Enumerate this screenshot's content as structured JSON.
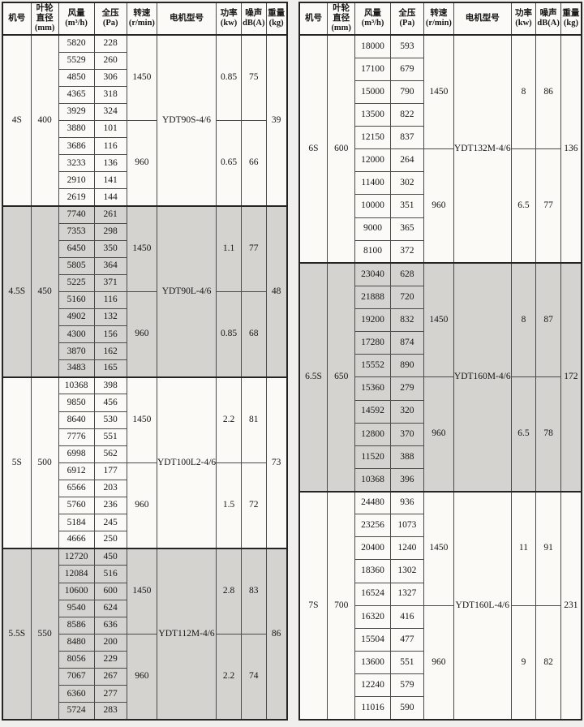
{
  "header": {
    "model": "机号",
    "diameter": [
      "叶轮",
      "直径",
      "(mm)"
    ],
    "flow": [
      "风量",
      "(m³/h)"
    ],
    "pressure": [
      "全压",
      "(Pa)"
    ],
    "speed": [
      "转速",
      "(r/min)"
    ],
    "motor": "电机型号",
    "power": [
      "功率",
      "(kw)"
    ],
    "noise": [
      "噪声",
      "dB(A)"
    ],
    "weight": [
      "重量",
      "(kg)"
    ]
  },
  "tables": [
    {
      "side": "left",
      "sections": [
        {
          "model": "4S",
          "diameter": "400",
          "shaded": false,
          "motor": [
            "YDT90S",
            "-4/6"
          ],
          "weight": "39",
          "speeds": [
            {
              "rpm": "1450",
              "power": "0.85",
              "noise": "75",
              "rows": [
                [
                  "5820",
                  "228"
                ],
                [
                  "5529",
                  "260"
                ],
                [
                  "4850",
                  "306"
                ],
                [
                  "4365",
                  "318"
                ],
                [
                  "3929",
                  "324"
                ]
              ]
            },
            {
              "rpm": "960",
              "power": "0.65",
              "noise": "66",
              "rows": [
                [
                  "3880",
                  "101"
                ],
                [
                  "3686",
                  "116"
                ],
                [
                  "3233",
                  "136"
                ],
                [
                  "2910",
                  "141"
                ],
                [
                  "2619",
                  "144"
                ]
              ]
            }
          ]
        },
        {
          "model": "4.5S",
          "diameter": "450",
          "shaded": true,
          "motor": [
            "YDT90L",
            "-4/6"
          ],
          "weight": "48",
          "speeds": [
            {
              "rpm": "1450",
              "power": "1.1",
              "noise": "77",
              "rows": [
                [
                  "7740",
                  "261"
                ],
                [
                  "7353",
                  "298"
                ],
                [
                  "6450",
                  "350"
                ],
                [
                  "5805",
                  "364"
                ],
                [
                  "5225",
                  "371"
                ]
              ]
            },
            {
              "rpm": "960",
              "power": "0.85",
              "noise": "68",
              "rows": [
                [
                  "5160",
                  "116"
                ],
                [
                  "4902",
                  "132"
                ],
                [
                  "4300",
                  "156"
                ],
                [
                  "3870",
                  "162"
                ],
                [
                  "3483",
                  "165"
                ]
              ]
            }
          ]
        },
        {
          "model": "5S",
          "diameter": "500",
          "shaded": false,
          "motor": [
            "YDT100L2",
            "-4/6"
          ],
          "weight": "73",
          "speeds": [
            {
              "rpm": "1450",
              "power": "2.2",
              "noise": "81",
              "rows": [
                [
                  "10368",
                  "398"
                ],
                [
                  "9850",
                  "456"
                ],
                [
                  "8640",
                  "530"
                ],
                [
                  "7776",
                  "551"
                ],
                [
                  "6998",
                  "562"
                ]
              ]
            },
            {
              "rpm": "960",
              "power": "1.5",
              "noise": "72",
              "rows": [
                [
                  "6912",
                  "177"
                ],
                [
                  "6566",
                  "203"
                ],
                [
                  "5760",
                  "236"
                ],
                [
                  "5184",
                  "245"
                ],
                [
                  "4666",
                  "250"
                ]
              ]
            }
          ]
        },
        {
          "model": "5.5S",
          "diameter": "550",
          "shaded": true,
          "motor": [
            "YDT112M",
            "-4/6"
          ],
          "weight": "86",
          "speeds": [
            {
              "rpm": "1450",
              "power": "2.8",
              "noise": "83",
              "rows": [
                [
                  "12720",
                  "450"
                ],
                [
                  "12084",
                  "516"
                ],
                [
                  "10600",
                  "600"
                ],
                [
                  "9540",
                  "624"
                ],
                [
                  "8586",
                  "636"
                ]
              ]
            },
            {
              "rpm": "960",
              "power": "2.2",
              "noise": "74",
              "rows": [
                [
                  "8480",
                  "200"
                ],
                [
                  "8056",
                  "229"
                ],
                [
                  "7067",
                  "267"
                ],
                [
                  "6360",
                  "277"
                ],
                [
                  "5724",
                  "283"
                ]
              ]
            }
          ]
        }
      ]
    },
    {
      "side": "right",
      "sections": [
        {
          "model": "6S",
          "diameter": "600",
          "shaded": false,
          "motor": [
            "YDT132M",
            "-4/6"
          ],
          "weight": "136",
          "speeds": [
            {
              "rpm": "1450",
              "power": "8",
              "noise": "86",
              "rows": [
                [
                  "18000",
                  "593"
                ],
                [
                  "17100",
                  "679"
                ],
                [
                  "15000",
                  "790"
                ],
                [
                  "13500",
                  "822"
                ],
                [
                  "12150",
                  "837"
                ]
              ]
            },
            {
              "rpm": "960",
              "power": "6.5",
              "noise": "77",
              "rows": [
                [
                  "12000",
                  "264"
                ],
                [
                  "11400",
                  "302"
                ],
                [
                  "10000",
                  "351"
                ],
                [
                  "9000",
                  "365"
                ],
                [
                  "8100",
                  "372"
                ]
              ]
            }
          ]
        },
        {
          "model": "6.5S",
          "diameter": "650",
          "shaded": true,
          "motor": [
            "YDT160M",
            "-4/6"
          ],
          "weight": "172",
          "speeds": [
            {
              "rpm": "1450",
              "power": "8",
              "noise": "87",
              "rows": [
                [
                  "23040",
                  "628"
                ],
                [
                  "21888",
                  "720"
                ],
                [
                  "19200",
                  "832"
                ],
                [
                  "17280",
                  "874"
                ],
                [
                  "15552",
                  "890"
                ]
              ]
            },
            {
              "rpm": "960",
              "power": "6.5",
              "noise": "78",
              "rows": [
                [
                  "15360",
                  "279"
                ],
                [
                  "14592",
                  "320"
                ],
                [
                  "12800",
                  "370"
                ],
                [
                  "11520",
                  "388"
                ],
                [
                  "10368",
                  "396"
                ]
              ]
            }
          ]
        },
        {
          "model": "7S",
          "diameter": "700",
          "shaded": false,
          "motor": [
            "YDT160L",
            "-4/6"
          ],
          "weight": "231",
          "speeds": [
            {
              "rpm": "1450",
              "power": "11",
              "noise": "91",
              "rows": [
                [
                  "24480",
                  "936"
                ],
                [
                  "23256",
                  "1073"
                ],
                [
                  "20400",
                  "1240"
                ],
                [
                  "18360",
                  "1302"
                ],
                [
                  "16524",
                  "1327"
                ]
              ]
            },
            {
              "rpm": "960",
              "power": "9",
              "noise": "82",
              "rows": [
                [
                  "16320",
                  "416"
                ],
                [
                  "15504",
                  "477"
                ],
                [
                  "13600",
                  "551"
                ],
                [
                  "12240",
                  "579"
                ],
                [
                  "11016",
                  "590"
                ]
              ]
            }
          ]
        }
      ]
    }
  ]
}
